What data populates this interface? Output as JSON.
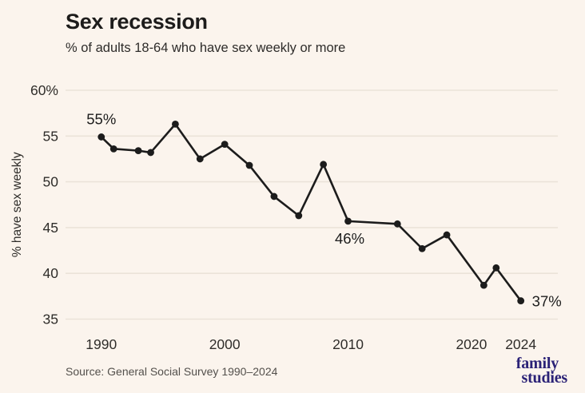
{
  "page": {
    "background": "#fbf4ed"
  },
  "header": {
    "title": "Sex recession",
    "subtitle": "% of adults 18-64 who have sex weekly or more"
  },
  "chart_data": {
    "type": "line",
    "title": "Sex recession",
    "subtitle": "% of adults 18-64 who have sex weekly or more",
    "x": [
      1990,
      1991,
      1993,
      1994,
      1996,
      1998,
      2000,
      2002,
      2004,
      2006,
      2008,
      2010,
      2014,
      2016,
      2018,
      2021,
      2022,
      2024
    ],
    "values": [
      54.9,
      53.6,
      53.4,
      53.2,
      56.3,
      52.5,
      54.1,
      51.8,
      48.4,
      46.3,
      51.9,
      45.7,
      45.4,
      42.7,
      44.2,
      38.7,
      40.6,
      37
    ],
    "xlabel": "",
    "ylabel": "% have sex weekly",
    "ylim": [
      35,
      60
    ],
    "xlim": [
      1987.1,
      2027
    ],
    "grid": "horizontal-only",
    "legend": "none",
    "y_ticks": [
      {
        "value": 60,
        "label": "60%"
      },
      {
        "value": 55,
        "label": "55"
      },
      {
        "value": 50,
        "label": "50"
      },
      {
        "value": 45,
        "label": "45"
      },
      {
        "value": 40,
        "label": "40"
      },
      {
        "value": 35,
        "label": "35"
      }
    ],
    "x_ticks": [
      {
        "value": 1990,
        "label": "1990"
      },
      {
        "value": 2000,
        "label": "2000"
      },
      {
        "value": 2010,
        "label": "2010"
      },
      {
        "value": 2020,
        "label": "2020"
      },
      {
        "value": 2024,
        "label": "2024"
      }
    ],
    "annotations": [
      {
        "text": "55%",
        "year": 1990,
        "value": 54.9,
        "position": "above"
      },
      {
        "text": "46%",
        "year": 2010,
        "value": 45.7,
        "position": "below"
      },
      {
        "text": "37%",
        "year": 2024,
        "value": 37,
        "position": "right"
      }
    ],
    "colors": {
      "line": "#1c1c1c",
      "marker": "#1c1c1c",
      "gridline": "#ebe3d9",
      "axis_text": "#2f2d2a",
      "annotation_text": "#1c1c1c"
    }
  },
  "footer": {
    "source": "Source: General Social Survey 1990–2024",
    "logo": {
      "line1": "family",
      "line2": "studies",
      "color": "#2b2277"
    }
  }
}
